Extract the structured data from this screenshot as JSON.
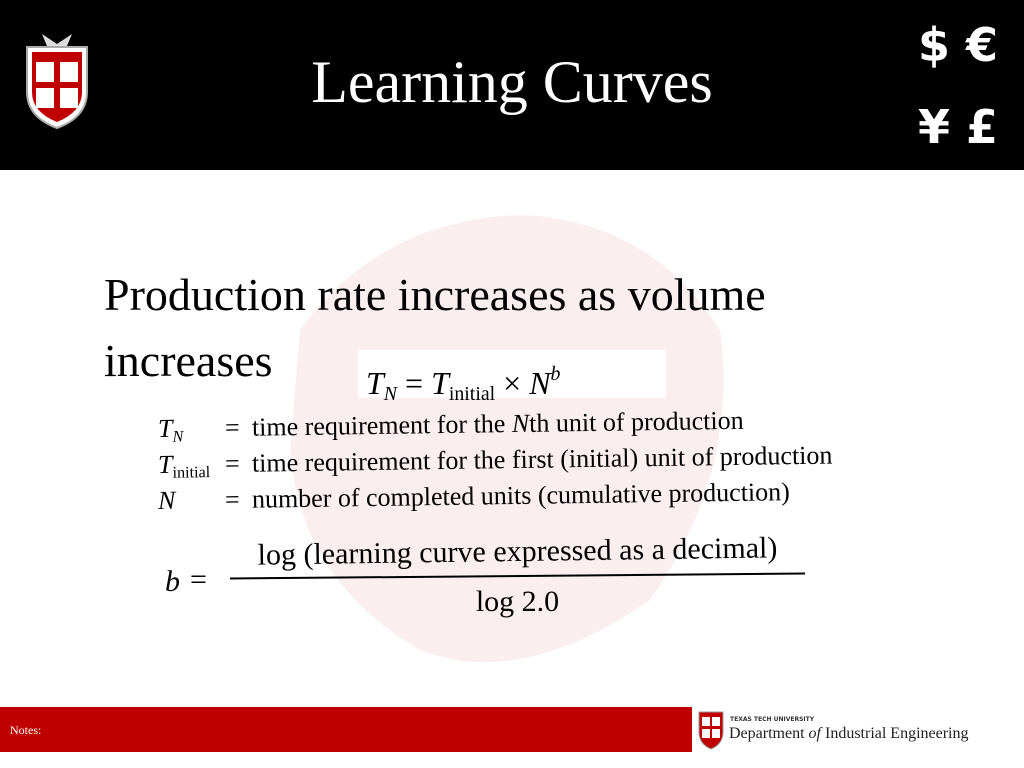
{
  "header": {
    "title": "Learning Curves",
    "currency_top": "$ €",
    "currency_bottom": "¥ £"
  },
  "body": {
    "text": "Production rate increases as volume increases"
  },
  "formula": {
    "lhs_symbol": "T",
    "lhs_subscript": "N",
    "equals": "=",
    "rhs_symbol": "T",
    "rhs_subscript": "initial",
    "times": "×",
    "base": "N",
    "exponent": "b"
  },
  "definitions": [
    {
      "symbol": "T",
      "subscript": "N",
      "equals": "=",
      "parts": [
        "time requirement for the ",
        "N",
        "th unit of production"
      ]
    },
    {
      "symbol": "T",
      "subscript": "initial",
      "equals": "=",
      "parts": [
        "time requirement for the first (initial) unit of production"
      ]
    },
    {
      "symbol": "N",
      "equals": "=",
      "parts": [
        "number of completed units (cumulative production)"
      ]
    }
  ],
  "fraction": {
    "symbol": "b",
    "equals": "=",
    "numerator": "log (learning curve expressed as a decimal)",
    "denominator": "log 2.0"
  },
  "footer": {
    "notes": "Notes:",
    "university": "TEXAS TECH UNIVERSITY",
    "department_prefix": "Department ",
    "department_of": "of",
    "department_suffix": " Industrial Engineering"
  }
}
